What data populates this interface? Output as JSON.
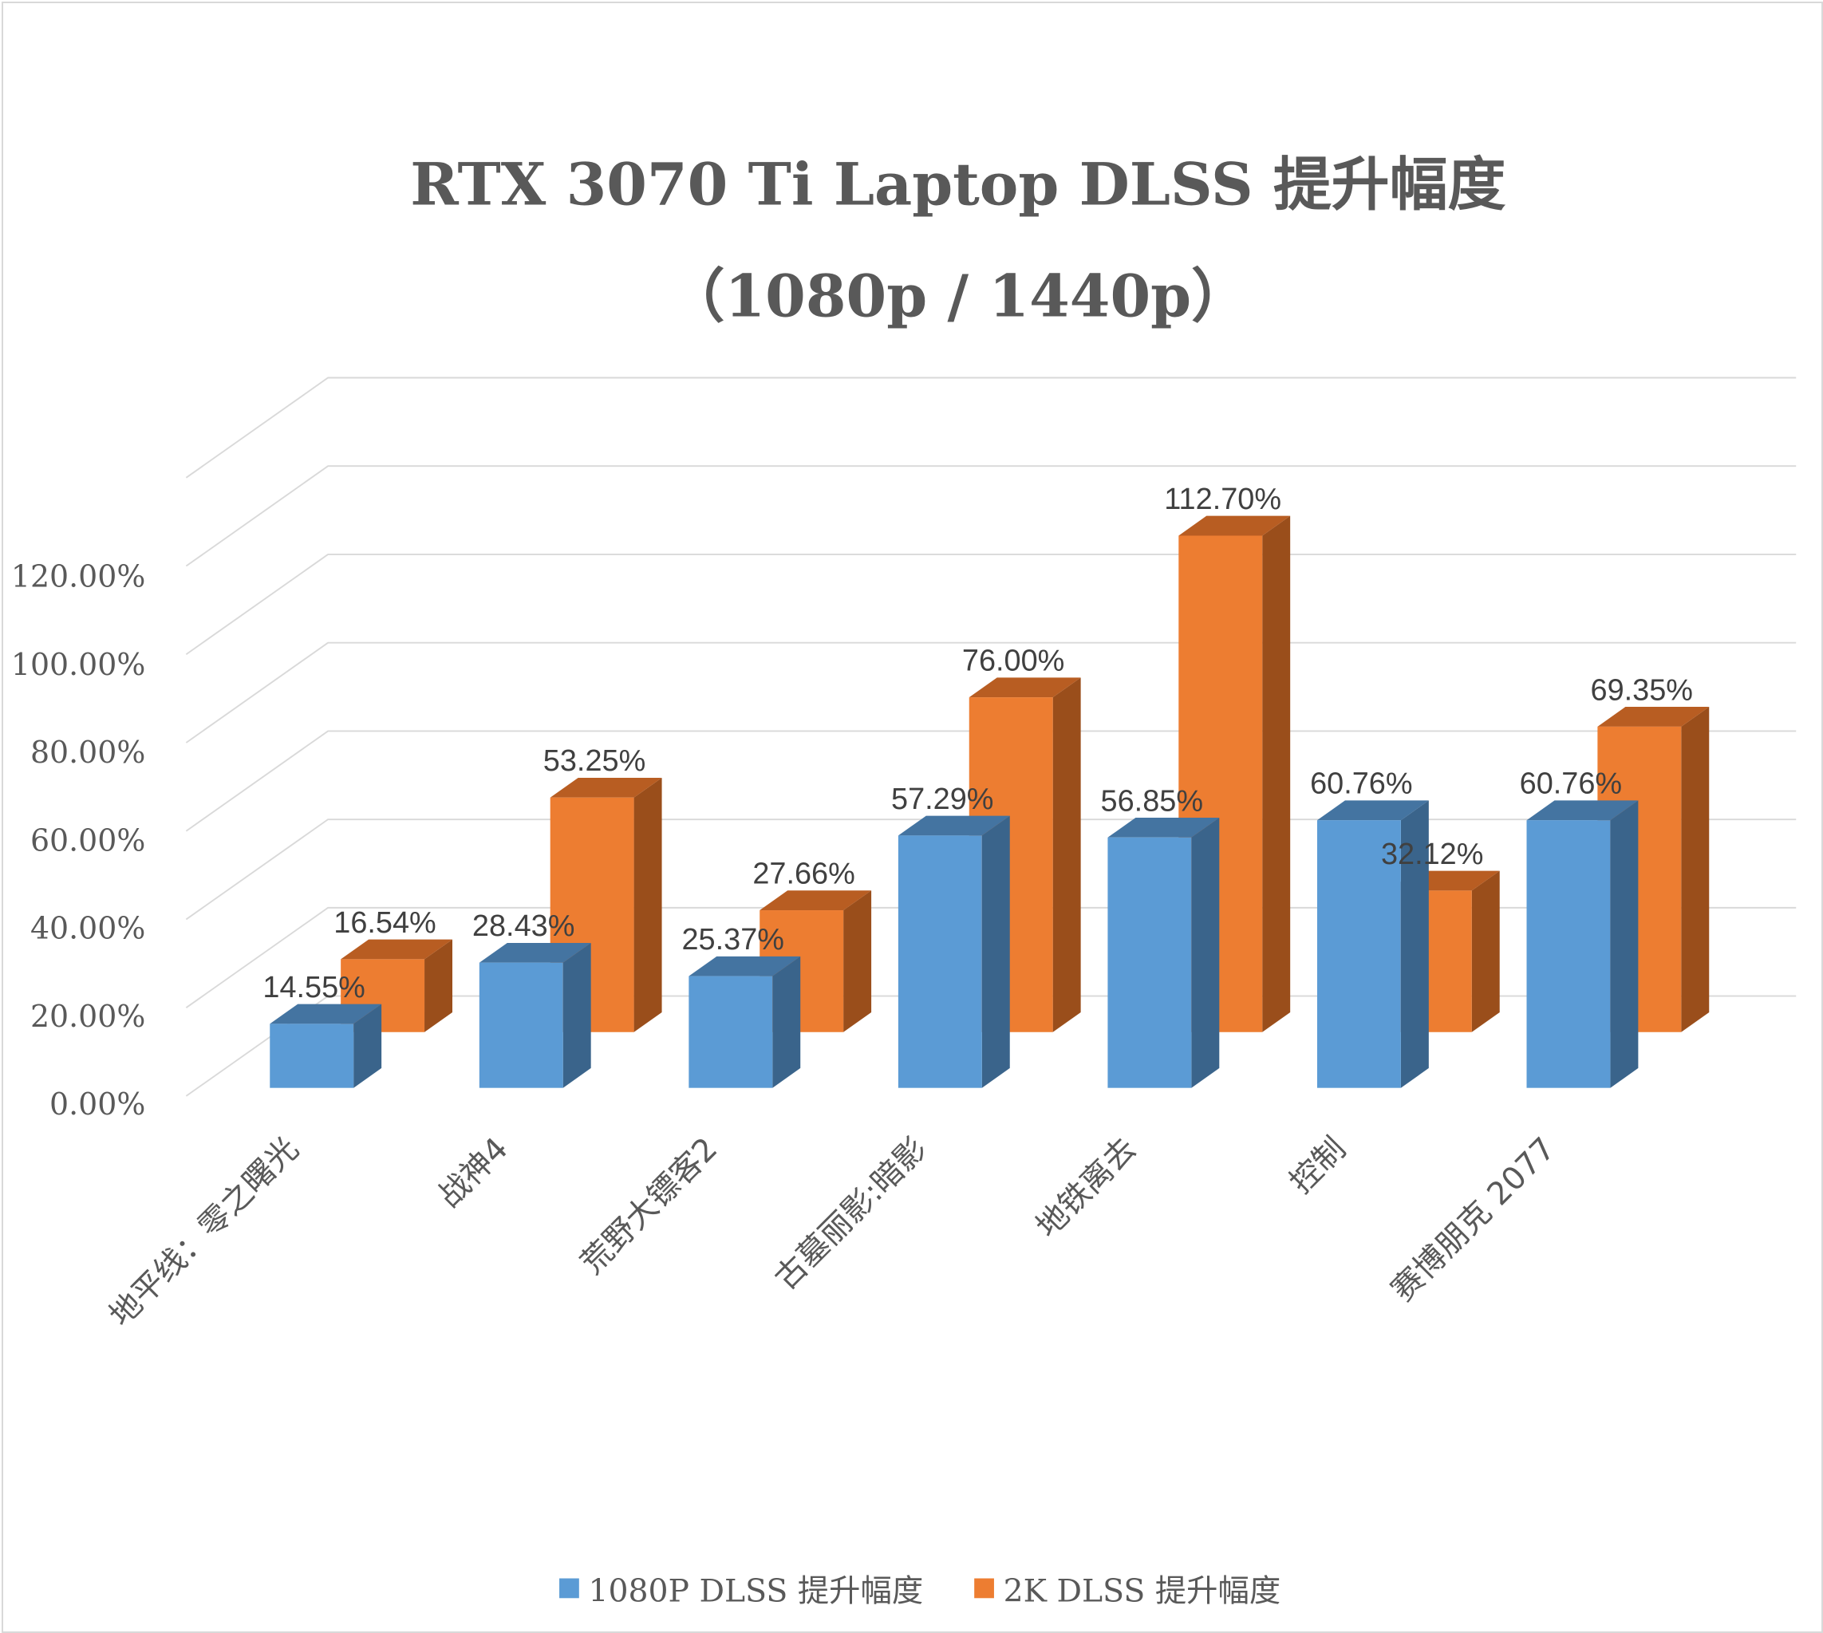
{
  "chart_data": {
    "type": "bar",
    "subtype": "3d-clustered-column",
    "title": "RTX 3070 Ti Laptop DLSS 提升幅度",
    "subtitle": "（1080p / 1440p）",
    "xlabel": "",
    "ylabel": "",
    "categories": [
      "地平线：零之曙光",
      "战神4",
      "荒野大镖客2",
      "古墓丽影:暗影",
      "地铁离去",
      "控制",
      "赛博朋克 2077"
    ],
    "series": [
      {
        "name": "1080P DLSS 提升幅度",
        "color": "#5B9BD5",
        "top_color": "#4474A1",
        "side_color": "#3A648B",
        "values": [
          14.55,
          28.43,
          25.37,
          57.29,
          56.85,
          60.76,
          60.76
        ],
        "labels": [
          "14.55%",
          "28.43%",
          "25.37%",
          "57.29%",
          "56.85%",
          "60.76%",
          "60.76%"
        ]
      },
      {
        "name": "2K DLSS 提升幅度",
        "color": "#ED7D31",
        "top_color": "#B85D22",
        "side_color": "#9A4E1B",
        "values": [
          16.54,
          53.25,
          27.66,
          76.0,
          112.7,
          32.12,
          69.35
        ],
        "labels": [
          "16.54%",
          "53.25%",
          "27.66%",
          "76.00%",
          "112.70%",
          "32.12%",
          "69.35%"
        ]
      }
    ],
    "yticks": [
      "0.00%",
      "20.00%",
      "40.00%",
      "60.00%",
      "80.00%",
      "100.00%",
      "120.00%"
    ],
    "ytick_values": [
      0,
      20,
      40,
      60,
      80,
      100,
      120
    ],
    "ylim": [
      0,
      140
    ],
    "grid": true,
    "legend_position": "bottom"
  },
  "legend": {
    "items": [
      {
        "label": "1080P DLSS 提升幅度",
        "color": "#5B9BD5"
      },
      {
        "label": "2K DLSS 提升幅度",
        "color": "#ED7D31"
      }
    ]
  }
}
